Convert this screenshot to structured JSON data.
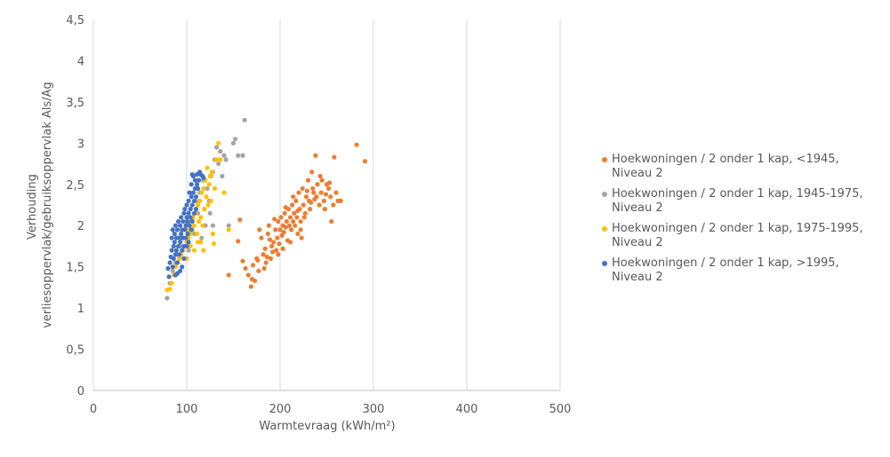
{
  "chart_data": {
    "type": "scatter",
    "xlabel": "Warmtevraag (kWh/m²)",
    "ylabel_line1": "Verhouding",
    "ylabel_line2": "verliesoppervlak/gebruiksoppervlak Als/Ag",
    "xlim": [
      0,
      500
    ],
    "ylim": [
      0,
      4.5
    ],
    "x_ticks": [
      "0",
      "100",
      "200",
      "300",
      "400",
      "500"
    ],
    "y_ticks": [
      "0",
      "0,5",
      "1",
      "1,5",
      "2",
      "2,5",
      "3",
      "3,5",
      "4",
      "4,5"
    ],
    "grid": "vertical",
    "legend_position": "right",
    "series": [
      {
        "name": "Hoekwoningen / 2 onder 1 kap, <1945, Niveau 2",
        "color": "#ED7D31",
        "points": [
          [
            145,
            1.4
          ],
          [
            155,
            1.81
          ],
          [
            157,
            2.07
          ],
          [
            160,
            1.57
          ],
          [
            163,
            1.48
          ],
          [
            166,
            1.4
          ],
          [
            169,
            1.26
          ],
          [
            171,
            1.52
          ],
          [
            173,
            1.33
          ],
          [
            175,
            1.6
          ],
          [
            177,
            1.45
          ],
          [
            178,
            1.95
          ],
          [
            180,
            1.85
          ],
          [
            182,
            1.65
          ],
          [
            184,
            1.72
          ],
          [
            185,
            1.55
          ],
          [
            187,
            1.9
          ],
          [
            188,
            2.0
          ],
          [
            190,
            1.6
          ],
          [
            191,
            1.75
          ],
          [
            192,
            1.68
          ],
          [
            193,
            1.8
          ],
          [
            195,
            1.95
          ],
          [
            196,
            1.7
          ],
          [
            197,
            1.85
          ],
          [
            198,
            2.05
          ],
          [
            199,
            1.78
          ],
          [
            200,
            1.95
          ],
          [
            201,
            2.1
          ],
          [
            202,
            1.88
          ],
          [
            203,
            2.0
          ],
          [
            204,
            1.92
          ],
          [
            205,
            2.15
          ],
          [
            206,
            1.98
          ],
          [
            207,
            2.05
          ],
          [
            208,
            1.82
          ],
          [
            209,
            2.2
          ],
          [
            210,
            2.0
          ],
          [
            211,
            2.1
          ],
          [
            212,
            1.95
          ],
          [
            213,
            2.25
          ],
          [
            214,
            2.05
          ],
          [
            215,
            2.15
          ],
          [
            216,
            2.0
          ],
          [
            217,
            2.3
          ],
          [
            218,
            2.1
          ],
          [
            219,
            1.9
          ],
          [
            220,
            2.4
          ],
          [
            221,
            2.2
          ],
          [
            222,
            2.05
          ],
          [
            223,
            1.85
          ],
          [
            224,
            2.45
          ],
          [
            225,
            2.25
          ],
          [
            226,
            2.1
          ],
          [
            228,
            2.35
          ],
          [
            230,
            2.55
          ],
          [
            231,
            2.3
          ],
          [
            232,
            2.2
          ],
          [
            234,
            2.65
          ],
          [
            235,
            2.45
          ],
          [
            236,
            2.4
          ],
          [
            238,
            2.85
          ],
          [
            239,
            2.35
          ],
          [
            240,
            2.5
          ],
          [
            242,
            2.25
          ],
          [
            244,
            2.4
          ],
          [
            245,
            2.55
          ],
          [
            247,
            2.3
          ],
          [
            248,
            2.2
          ],
          [
            250,
            2.5
          ],
          [
            252,
            2.45
          ],
          [
            254,
            2.35
          ],
          [
            255,
            2.05
          ],
          [
            257,
            2.25
          ],
          [
            258,
            2.83
          ],
          [
            260,
            2.4
          ],
          [
            262,
            2.3
          ],
          [
            265,
            2.3
          ],
          [
            282,
            2.98
          ],
          [
            291,
            2.78
          ],
          [
            170,
            1.35
          ],
          [
            176,
            1.58
          ],
          [
            183,
            1.48
          ],
          [
            186,
            1.62
          ],
          [
            189,
            1.83
          ],
          [
            194,
            2.08
          ],
          [
            198,
            1.65
          ],
          [
            203,
            1.72
          ],
          [
            206,
            2.22
          ],
          [
            211,
            1.8
          ],
          [
            214,
            2.35
          ],
          [
            219,
            2.18
          ],
          [
            222,
            1.95
          ],
          [
            227,
            2.15
          ],
          [
            229,
            2.42
          ],
          [
            233,
            2.28
          ],
          [
            237,
            2.32
          ],
          [
            243,
            2.6
          ],
          [
            249,
            2.38
          ],
          [
            253,
            2.52
          ]
        ]
      },
      {
        "name": "Hoekwoningen / 2 onder 1 kap, 1945-1975, Niveau 2",
        "color": "#A5A5A5",
        "points": [
          [
            79,
            1.12
          ],
          [
            82,
            1.3
          ],
          [
            85,
            1.45
          ],
          [
            88,
            1.55
          ],
          [
            90,
            1.65
          ],
          [
            93,
            1.75
          ],
          [
            95,
            1.85
          ],
          [
            98,
            1.95
          ],
          [
            100,
            2.05
          ],
          [
            102,
            1.7
          ],
          [
            104,
            2.2
          ],
          [
            106,
            2.1
          ],
          [
            108,
            1.9
          ],
          [
            110,
            2.3
          ],
          [
            112,
            2.15
          ],
          [
            114,
            2.4
          ],
          [
            116,
            1.85
          ],
          [
            118,
            2.55
          ],
          [
            120,
            2.0
          ],
          [
            122,
            2.45
          ],
          [
            124,
            2.3
          ],
          [
            126,
            2.6
          ],
          [
            128,
            2.65
          ],
          [
            130,
            2.8
          ],
          [
            132,
            2.95
          ],
          [
            134,
            2.75
          ],
          [
            136,
            2.9
          ],
          [
            138,
            2.6
          ],
          [
            140,
            2.85
          ],
          [
            142,
            2.8
          ],
          [
            145,
            2.0
          ],
          [
            150,
            3.0
          ],
          [
            152,
            3.05
          ],
          [
            155,
            2.85
          ],
          [
            160,
            2.85
          ],
          [
            162,
            3.28
          ],
          [
            125,
            2.15
          ],
          [
            128,
            2.0
          ],
          [
            119,
            2.2
          ]
        ]
      },
      {
        "name": "Hoekwoningen / 2 onder 1 kap, 1975-1995, Niveau 2",
        "color": "#FFC000",
        "points": [
          [
            79,
            1.22
          ],
          [
            82,
            1.23
          ],
          [
            84,
            1.3
          ],
          [
            86,
            1.4
          ],
          [
            88,
            1.5
          ],
          [
            90,
            1.55
          ],
          [
            92,
            1.6
          ],
          [
            94,
            1.65
          ],
          [
            96,
            1.7
          ],
          [
            98,
            1.75
          ],
          [
            100,
            1.8
          ],
          [
            101,
            1.95
          ],
          [
            102,
            1.85
          ],
          [
            103,
            2.0
          ],
          [
            104,
            1.9
          ],
          [
            105,
            2.05
          ],
          [
            106,
            1.95
          ],
          [
            107,
            2.1
          ],
          [
            108,
            2.0
          ],
          [
            109,
            2.15
          ],
          [
            110,
            2.2
          ],
          [
            111,
            1.9
          ],
          [
            112,
            2.25
          ],
          [
            113,
            2.05
          ],
          [
            114,
            2.3
          ],
          [
            115,
            2.1
          ],
          [
            116,
            2.4
          ],
          [
            117,
            2.0
          ],
          [
            118,
            2.45
          ],
          [
            119,
            2.2
          ],
          [
            120,
            2.55
          ],
          [
            121,
            2.35
          ],
          [
            122,
            2.7
          ],
          [
            123,
            2.25
          ],
          [
            124,
            2.5
          ],
          [
            125,
            2.6
          ],
          [
            126,
            2.3
          ],
          [
            127,
            2.65
          ],
          [
            128,
            1.9
          ],
          [
            129,
            1.78
          ],
          [
            130,
            2.45
          ],
          [
            132,
            2.8
          ],
          [
            134,
            3.0
          ],
          [
            136,
            2.8
          ],
          [
            140,
            2.4
          ],
          [
            145,
            1.95
          ],
          [
            115,
            1.8
          ],
          [
            118,
            1.7
          ],
          [
            108,
            1.7
          ],
          [
            112,
            1.8
          ],
          [
            100,
            1.6
          ],
          [
            104,
            1.75
          ]
        ]
      },
      {
        "name": "Hoekwoningen / 2 onder 1 kap, >1995, Niveau 2",
        "color": "#4472C4",
        "points": [
          [
            80,
            1.48
          ],
          [
            81,
            1.38
          ],
          [
            82,
            1.55
          ],
          [
            83,
            1.62
          ],
          [
            84,
            1.7
          ],
          [
            84,
            1.85
          ],
          [
            85,
            1.5
          ],
          [
            85,
            1.95
          ],
          [
            86,
            1.75
          ],
          [
            86,
            1.6
          ],
          [
            87,
            1.8
          ],
          [
            87,
            1.9
          ],
          [
            88,
            1.65
          ],
          [
            88,
            2.0
          ],
          [
            89,
            1.7
          ],
          [
            89,
            1.85
          ],
          [
            90,
            1.95
          ],
          [
            90,
            1.55
          ],
          [
            91,
            2.05
          ],
          [
            91,
            1.75
          ],
          [
            92,
            1.85
          ],
          [
            92,
            1.65
          ],
          [
            93,
            2.0
          ],
          [
            93,
            1.8
          ],
          [
            94,
            1.9
          ],
          [
            94,
            2.1
          ],
          [
            95,
            1.7
          ],
          [
            95,
            1.95
          ],
          [
            96,
            2.05
          ],
          [
            96,
            1.85
          ],
          [
            97,
            2.15
          ],
          [
            97,
            1.75
          ],
          [
            98,
            1.95
          ],
          [
            98,
            2.2
          ],
          [
            99,
            2.0
          ],
          [
            99,
            1.85
          ],
          [
            100,
            2.1
          ],
          [
            100,
            2.25
          ],
          [
            101,
            1.9
          ],
          [
            101,
            2.05
          ],
          [
            102,
            2.15
          ],
          [
            102,
            2.3
          ],
          [
            103,
            2.0
          ],
          [
            103,
            2.4
          ],
          [
            104,
            2.2
          ],
          [
            104,
            2.1
          ],
          [
            105,
            2.35
          ],
          [
            105,
            2.5
          ],
          [
            106,
            2.25
          ],
          [
            106,
            2.05
          ],
          [
            107,
            2.4
          ],
          [
            107,
            2.6
          ],
          [
            108,
            2.3
          ],
          [
            108,
            2.15
          ],
          [
            109,
            2.45
          ],
          [
            109,
            2.55
          ],
          [
            110,
            2.35
          ],
          [
            111,
            2.5
          ],
          [
            111,
            2.62
          ],
          [
            112,
            2.45
          ],
          [
            113,
            2.55
          ],
          [
            114,
            2.65
          ],
          [
            115,
            2.62
          ],
          [
            117,
            2.6
          ],
          [
            118,
            2.58
          ],
          [
            100,
            1.75
          ],
          [
            97,
            1.6
          ],
          [
            95,
            1.5
          ],
          [
            93,
            1.45
          ],
          [
            90,
            1.42
          ],
          [
            88,
            1.4
          ],
          [
            102,
            1.8
          ],
          [
            105,
            1.95
          ],
          [
            110,
            2.2
          ],
          [
            106,
            2.62
          ]
        ]
      }
    ]
  }
}
